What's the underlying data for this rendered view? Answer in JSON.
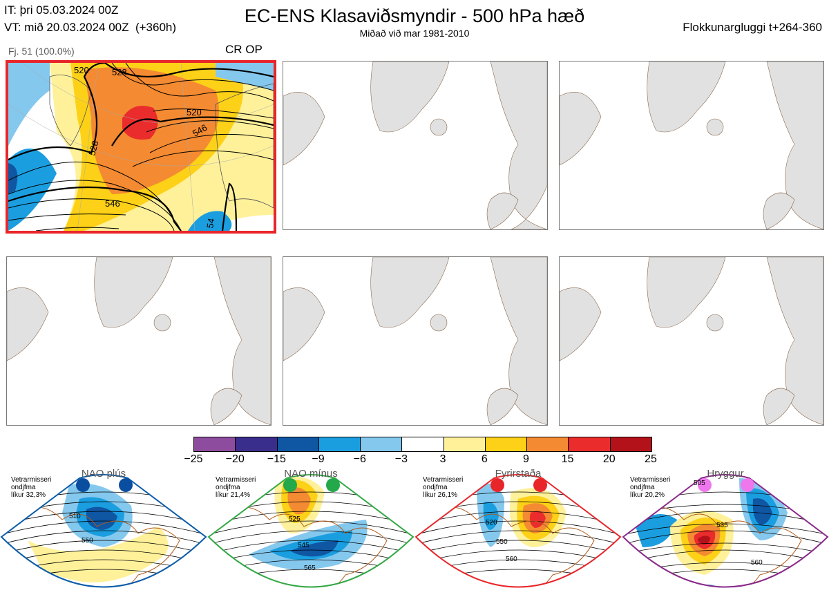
{
  "header": {
    "it_line": "IT: þri 05.03.2024 00Z",
    "vt_line": "VT: mið 20.03.2024 00Z  (+360h)",
    "title": "EC-ENS Klasaviðsmyndir - 500 hPa hæð",
    "subtitle": "Miðað við mar 1981-2010",
    "window": "Flokkunargluggi t+264-360"
  },
  "cluster": {
    "member_label": "Fj. 51 (100.0%)",
    "crop_label": "CR OP",
    "contour_labels": [
      "520",
      "520",
      "528",
      "528",
      "546",
      "546",
      "54"
    ]
  },
  "colorbar": {
    "colors": [
      "#8e4c9e",
      "#3a2e8c",
      "#0f56a3",
      "#1b9ee0",
      "#84c8ee",
      "#ffffff",
      "#fff19a",
      "#fdd117",
      "#f48a31",
      "#ea2c2c",
      "#b4121b"
    ],
    "ticks": [
      "−25",
      "−20",
      "−15",
      "−9",
      "−6",
      "−3",
      "3",
      "6",
      "9",
      "15",
      "20",
      "25"
    ]
  },
  "regimes": [
    {
      "name": "NAO plús",
      "line1": "Vetrarmisseri",
      "line2": "ondjfma",
      "prob": "líkur 32,3%",
      "color": "#0a5ba8",
      "dot": "#0a4ea0",
      "labels": [
        "510",
        "550"
      ]
    },
    {
      "name": "NAO mínus",
      "line1": "Vetrarmisseri",
      "line2": "ondjfma",
      "prob": "líkur 21,4%",
      "color": "#33a845",
      "dot": "#23a84a",
      "labels": [
        "525",
        "545",
        "565"
      ]
    },
    {
      "name": "Fyrirstaða",
      "line1": "Vetrarmisseri",
      "line2": "ondjfma",
      "prob": "líkur 26,1%",
      "color": "#e8262a",
      "dot": "#e8262a",
      "labels": [
        "520",
        "550",
        "560"
      ]
    },
    {
      "name": "Hryggur",
      "line1": "Vetrarmisseri",
      "line2": "ondjfma",
      "prob": "líkur 20,2%",
      "color": "#8a2a8a",
      "dot": "#ee77ee",
      "labels": [
        "505",
        "535",
        "560"
      ]
    }
  ]
}
